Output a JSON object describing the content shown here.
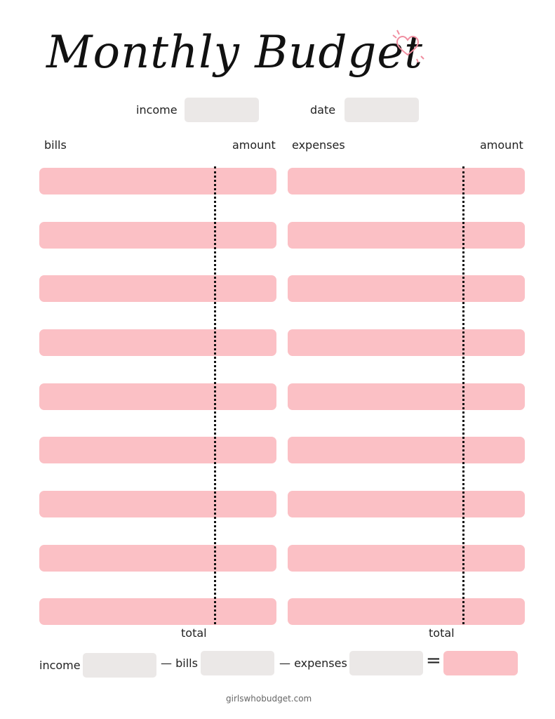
{
  "title": "Monthly Budget",
  "header": {
    "income_label": "income",
    "date_label": "date"
  },
  "bills": {
    "label": "bills",
    "amount_label": "amount",
    "total_label": "total",
    "row_count": 9
  },
  "expenses": {
    "label": "expenses",
    "amount_label": "amount",
    "total_label": "total",
    "row_count": 9
  },
  "summary": {
    "income_label": "income",
    "bills_label": "— bills",
    "expenses_label": "— expenses",
    "equals": "="
  },
  "footer": "girlswhobudget.com",
  "colors": {
    "row_pink": "#fbc0c5",
    "field_gray": "#ebe8e7",
    "accent_heart": "#f08ea0"
  },
  "icons": [
    "heart-icon"
  ]
}
